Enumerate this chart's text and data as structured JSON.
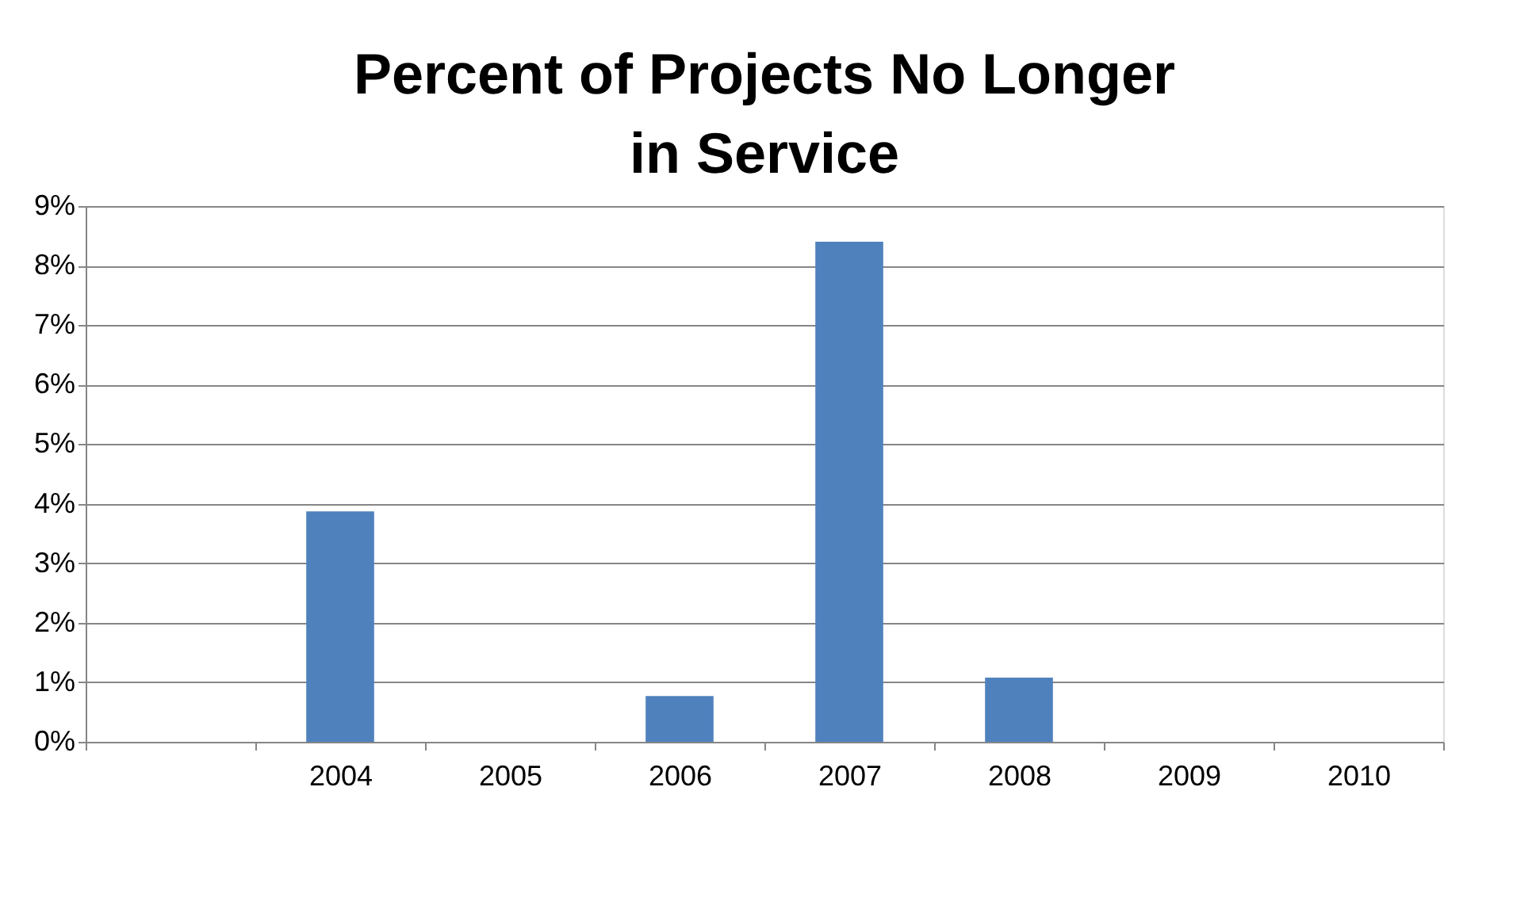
{
  "chart_data": {
    "type": "bar",
    "title": "Percent of Projects No Longer in Service",
    "categories": [
      null,
      "2004",
      "2005",
      "2006",
      "2007",
      "2008",
      "2009",
      "2010"
    ],
    "values": [
      0,
      3.87,
      0,
      0.77,
      8.4,
      1.08,
      0,
      0
    ],
    "color": "#4f81bd",
    "ylim": [
      0,
      9
    ],
    "yticks": [
      {
        "value": 0,
        "label": "0%"
      },
      {
        "value": 1,
        "label": "1%"
      },
      {
        "value": 2,
        "label": "2%"
      },
      {
        "value": 3,
        "label": "3%"
      },
      {
        "value": 4,
        "label": "4%"
      },
      {
        "value": 5,
        "label": "5%"
      },
      {
        "value": 6,
        "label": "6%"
      },
      {
        "value": 7,
        "label": "7%"
      },
      {
        "value": 8,
        "label": "8%"
      },
      {
        "value": 9,
        "label": "9%"
      }
    ],
    "grid": "y"
  }
}
